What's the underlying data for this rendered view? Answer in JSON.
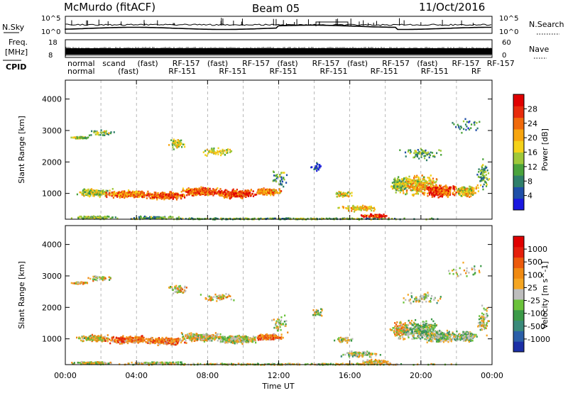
{
  "header": {
    "station": "McMurdo (fitACF)",
    "beam": "Beam 05",
    "date": "11/Oct/2016"
  },
  "strip_panels": {
    "nsky_label": "N.Sky",
    "nsearch_label": "N.Search",
    "nsky_ticks": [
      "10^5",
      "10^0"
    ],
    "nsearch_ticks": [
      "10^5",
      "10^0"
    ],
    "freq_label_1": "Freq.",
    "freq_label_2": "[MHz]",
    "freq_ticks": [
      "18",
      "8"
    ],
    "nave_label": "Nave",
    "nave_ticks": [
      "60",
      "0"
    ],
    "cpid_label": "CPID",
    "cpid_row1": [
      "normal",
      "scand",
      "(fast)",
      "RF-157",
      "(fast)",
      "RF-157",
      "(fast)",
      "RF-157",
      "(fast)",
      "RF-157",
      "(fast)",
      "RF-157",
      "RF-157"
    ],
    "cpid_row2": [
      "normal",
      "(fast)",
      "RF-151",
      "RF-151",
      "RF-151",
      "RF-151",
      "RF-151",
      "RF-151",
      "RF"
    ]
  },
  "chart_data": [
    {
      "type": "heatmap",
      "parameter": "Power",
      "ylabel": "Slant Range [km]",
      "xlabel": "Time UT",
      "x_ticks": [
        "00:00",
        "04:00",
        "08:00",
        "12:00",
        "16:00",
        "20:00",
        "00:00"
      ],
      "y_ticks": [
        1000,
        2000,
        3000,
        4000
      ],
      "ylim": [
        180,
        4600
      ],
      "xlim_hours": [
        0,
        24
      ],
      "colorbar": {
        "label": "Power [dB]",
        "ticks": [
          4,
          8,
          12,
          16,
          20,
          24,
          28
        ],
        "range": [
          0,
          32
        ],
        "colors": [
          "#1a18e0",
          "#1f4fa8",
          "#2f7f6a",
          "#4aa33c",
          "#9fc83a",
          "#f4d21a",
          "#f7a50f",
          "#f06a0c",
          "#e82b0c",
          "#e00000"
        ]
      }
    },
    {
      "type": "heatmap",
      "parameter": "Velocity",
      "ylabel": "Slant Range [km]",
      "xlabel": "Time UT",
      "x_ticks": [
        "00:00",
        "04:00",
        "08:00",
        "12:00",
        "16:00",
        "20:00",
        "00:00"
      ],
      "y_ticks": [
        1000,
        2000,
        3000,
        4000
      ],
      "ylim": [
        180,
        4600
      ],
      "xlim_hours": [
        0,
        24
      ],
      "colorbar": {
        "label": "Velocity [m s^-1]",
        "ticks": [
          "1000",
          "500",
          "100",
          "25",
          "-25",
          "-100",
          "-500",
          "-1000"
        ],
        "colors": [
          "#1b2fa6",
          "#2b5fa8",
          "#3a8a7a",
          "#3c9a48",
          "#6ac23a",
          "#bdbdbd",
          "#f5a623",
          "#f08a12",
          "#ec5a0c",
          "#e51f0c",
          "#e00000"
        ]
      }
    }
  ]
}
